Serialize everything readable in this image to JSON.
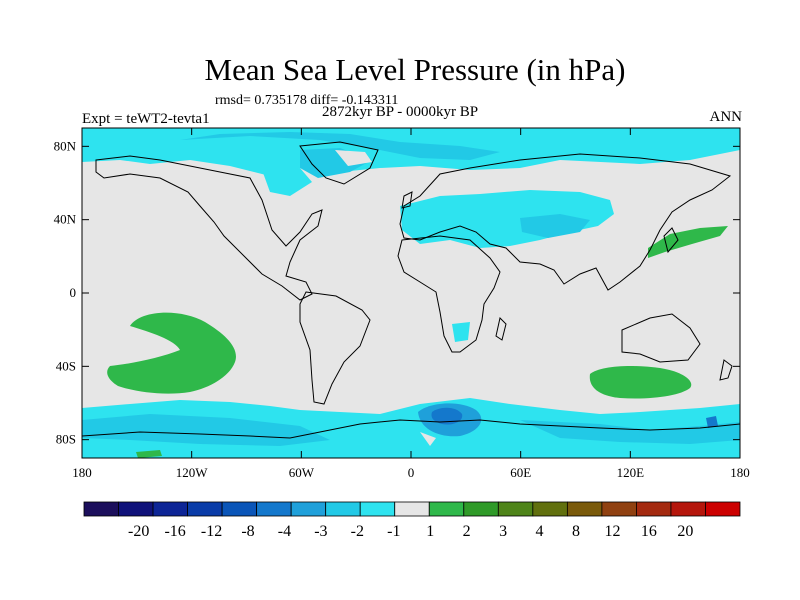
{
  "title": "Mean Sea Level Pressure (in hPa)",
  "stats": "rmsd= 0.735178 diff= -0.143311",
  "period": "2872kyr BP - 0000kyr BP",
  "experiment": "Expt = teWT2-tevta1",
  "season": "ANN",
  "map": {
    "lon_range": [
      -180,
      180
    ],
    "lat_range": [
      -90,
      90
    ],
    "x_ticks": [
      {
        "lon": -180,
        "label": "180"
      },
      {
        "lon": -120,
        "label": "120W"
      },
      {
        "lon": -60,
        "label": "60W"
      },
      {
        "lon": 0,
        "label": "0"
      },
      {
        "lon": 60,
        "label": "60E"
      },
      {
        "lon": 120,
        "label": "120E"
      },
      {
        "lon": 180,
        "label": "180"
      }
    ],
    "y_ticks": [
      {
        "lat": 80,
        "label": "80N"
      },
      {
        "lat": 40,
        "label": "40N"
      },
      {
        "lat": 0,
        "label": "0"
      },
      {
        "lat": -40,
        "label": "40S"
      },
      {
        "lat": -80,
        "label": "80S"
      }
    ],
    "background_color": "#e6e6e6",
    "coast_color": "#000000"
  },
  "colorbar": {
    "colors": [
      "#1c0f5c",
      "#10127a",
      "#0d2596",
      "#0a3ca8",
      "#0a55b8",
      "#1478cc",
      "#1fa0da",
      "#22c9e6",
      "#2ee3ef",
      "#e6e6e6",
      "#2fb84a",
      "#2f9a28",
      "#4e8419",
      "#61700e",
      "#7a5a0b",
      "#904111",
      "#a42a10",
      "#b5160c",
      "#cc0000"
    ],
    "labels": [
      "-20",
      "-16",
      "-12",
      "-8",
      "-4",
      "-3",
      "-2",
      "-1",
      "1",
      "2",
      "3",
      "4",
      "8",
      "12",
      "16",
      "20"
    ]
  },
  "features": [
    {
      "name": "arctic-deficit",
      "level": "-2"
    },
    {
      "name": "eurasia-deficit",
      "level": "-2"
    },
    {
      "name": "south-pacific-increase",
      "level": "2"
    },
    {
      "name": "south-indian-increase",
      "level": "2"
    },
    {
      "name": "japan-increase",
      "level": "2"
    },
    {
      "name": "southern-ocean-deficit",
      "level": "-2"
    }
  ]
}
